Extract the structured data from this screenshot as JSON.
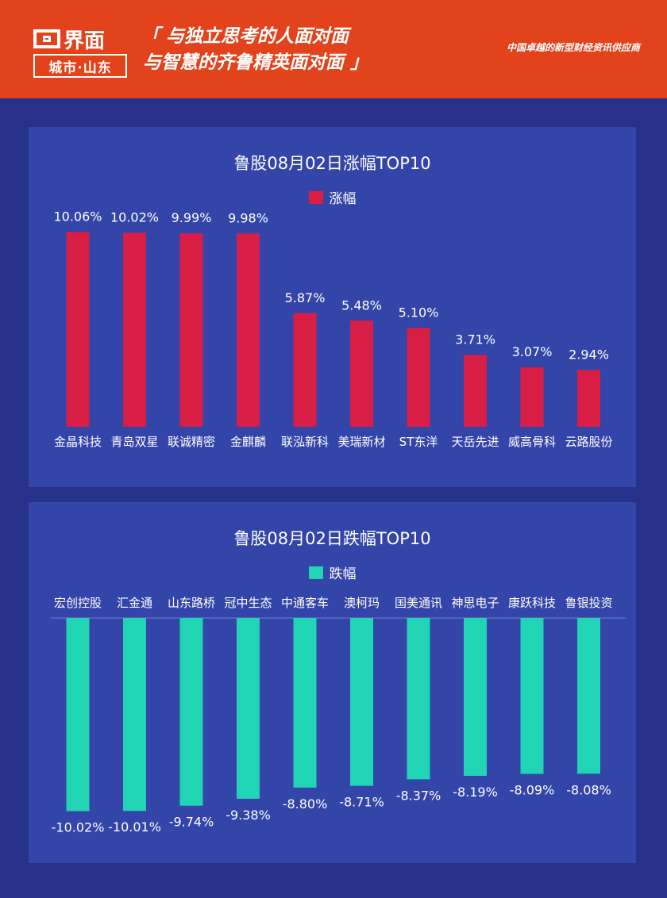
{
  "header": {
    "logo_brand": "界面",
    "logo_sub": "城市·山东",
    "slogan_line1": "「 与独立思考的人面对面",
    "slogan_line2": "与智慧的齐鲁精英面对面 」",
    "tagline": "中国卓越的新型财经资讯供应商",
    "bg_color": "#e2431c"
  },
  "chart_data": [
    {
      "type": "bar",
      "title": "鲁股08月02日涨幅TOP10",
      "series": [
        {
          "name": "涨幅",
          "color": "#d81e45",
          "values": [
            10.06,
            10.02,
            9.99,
            9.98,
            5.87,
            5.48,
            5.1,
            3.71,
            3.07,
            2.94
          ],
          "labels": [
            "10.06%",
            "10.02%",
            "9.99%",
            "9.98%",
            "5.87%",
            "5.48%",
            "5.10%",
            "3.71%",
            "3.07%",
            "2.94%"
          ]
        }
      ],
      "categories": [
        "金晶科技",
        "青岛双星",
        "联诚精密",
        "金麒麟",
        "联泓新科",
        "美瑞新材",
        "ST东洋",
        "天岳先进",
        "威高骨科",
        "云路股份"
      ]
    },
    {
      "type": "bar",
      "title": "鲁股08月02日跌幅TOP10",
      "series": [
        {
          "name": "跌幅",
          "color": "#20d4b4",
          "values": [
            -10.02,
            -10.01,
            -9.74,
            -9.38,
            -8.8,
            -8.71,
            -8.37,
            -8.19,
            -8.09,
            -8.08
          ],
          "labels": [
            "-10.02%",
            "-10.01%",
            "-9.74%",
            "-9.38%",
            "-8.80%",
            "-8.71%",
            "-8.37%",
            "-8.19%",
            "-8.09%",
            "-8.08%"
          ]
        }
      ],
      "categories": [
        "宏创控股",
        "汇金通",
        "山东路桥",
        "冠中生态",
        "中通客车",
        "澳柯玛",
        "国美通讯",
        "神思电子",
        "康跃科技",
        "鲁银投资"
      ]
    }
  ]
}
